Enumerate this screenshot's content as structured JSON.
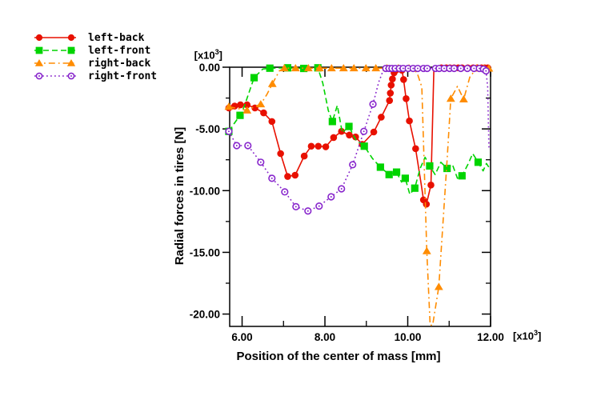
{
  "chart_data": {
    "type": "line",
    "xlabel": "Position of the center of mass [mm]",
    "ylabel": "Radial forces in tires [N]",
    "x_unit": {
      "prefix": "[x10",
      "sup": "3",
      "suffix": "]"
    },
    "y_unit": {
      "prefix": "[x10",
      "sup": "3",
      "suffix": "]"
    },
    "xlim": [
      5.7,
      12.0
    ],
    "ylim": [
      -21,
      0
    ],
    "x_major_ticks": [
      {
        "value": 6,
        "label": "6.00"
      },
      {
        "value": 8,
        "label": "8.00"
      },
      {
        "value": 10,
        "label": "10.00"
      },
      {
        "value": 12,
        "label": "12.00"
      }
    ],
    "x_minor_ticks": [
      7,
      9,
      11
    ],
    "y_major_ticks": [
      {
        "value": 0,
        "label": "0.00"
      },
      {
        "value": -5,
        "label": "-5.00"
      },
      {
        "value": -10,
        "label": "-10.00"
      },
      {
        "value": -15,
        "label": "-15.00"
      },
      {
        "value": -20,
        "label": "-20.00"
      }
    ],
    "y_minor_ticks": [
      -2.5,
      -7.5,
      -12.5,
      -17.5
    ],
    "grid": false,
    "legend_position": "top-left-outside",
    "series": [
      {
        "name": "left-back",
        "color": "#e81000",
        "marker": "circle",
        "line_style": "solid",
        "line": [
          [
            5.68,
            -3.3
          ],
          [
            5.82,
            -3.15
          ],
          [
            5.96,
            -3.05
          ],
          [
            6.12,
            -3.05
          ],
          [
            6.31,
            -3.3
          ],
          [
            6.52,
            -3.7
          ],
          [
            6.72,
            -4.4
          ],
          [
            6.93,
            -7.0
          ],
          [
            7.1,
            -8.85
          ],
          [
            7.28,
            -8.75
          ],
          [
            7.5,
            -7.2
          ],
          [
            7.67,
            -6.4
          ],
          [
            7.84,
            -6.4
          ],
          [
            8.02,
            -6.45
          ],
          [
            8.21,
            -5.7
          ],
          [
            8.4,
            -5.2
          ],
          [
            8.59,
            -5.5
          ],
          [
            8.74,
            -5.65
          ],
          [
            8.9,
            -6.25
          ],
          [
            9.18,
            -5.25
          ],
          [
            9.36,
            -4.05
          ],
          [
            9.56,
            -2.7
          ],
          [
            9.58,
            -2.1
          ],
          [
            9.6,
            -1.45
          ],
          [
            9.63,
            -0.95
          ],
          [
            9.67,
            -0.45
          ],
          [
            9.73,
            -0.2
          ],
          [
            9.8,
            -0.1
          ],
          [
            9.86,
            -0.25
          ],
          [
            9.9,
            -1.0
          ],
          [
            9.96,
            -2.55
          ],
          [
            10.04,
            -4.35
          ],
          [
            10.19,
            -6.6
          ],
          [
            10.33,
            -9.6
          ],
          [
            10.38,
            -10.75
          ],
          [
            10.42,
            -11.3
          ],
          [
            10.45,
            -11.1
          ],
          [
            10.56,
            -9.55
          ],
          [
            10.63,
            -0.3
          ],
          [
            10.81,
            -0.05
          ],
          [
            10.93,
            -0.05
          ],
          [
            11.02,
            -0.05
          ],
          [
            11.12,
            -0.05
          ],
          [
            11.22,
            -0.05
          ],
          [
            11.31,
            -0.05
          ],
          [
            11.45,
            -0.05
          ],
          [
            11.58,
            -0.05
          ],
          [
            11.68,
            -0.05
          ],
          [
            11.78,
            -0.05
          ],
          [
            11.86,
            -0.05
          ],
          [
            11.93,
            -0.05
          ]
        ],
        "markers": [
          [
            5.68,
            -3.3
          ],
          [
            5.82,
            -3.15
          ],
          [
            5.96,
            -3.05
          ],
          [
            6.12,
            -3.05
          ],
          [
            6.31,
            -3.3
          ],
          [
            6.52,
            -3.7
          ],
          [
            6.72,
            -4.4
          ],
          [
            6.93,
            -7.0
          ],
          [
            7.1,
            -8.85
          ],
          [
            7.28,
            -8.75
          ],
          [
            7.5,
            -7.2
          ],
          [
            7.67,
            -6.4
          ],
          [
            7.84,
            -6.4
          ],
          [
            8.02,
            -6.45
          ],
          [
            8.21,
            -5.7
          ],
          [
            8.4,
            -5.2
          ],
          [
            8.59,
            -5.5
          ],
          [
            8.74,
            -5.65
          ],
          [
            8.9,
            -6.25
          ],
          [
            9.18,
            -5.25
          ],
          [
            9.36,
            -4.05
          ],
          [
            9.56,
            -2.7
          ],
          [
            9.58,
            -2.1
          ],
          [
            9.6,
            -1.45
          ],
          [
            9.63,
            -0.95
          ],
          [
            9.67,
            -0.45
          ],
          [
            9.73,
            -0.2
          ],
          [
            9.8,
            -0.1
          ],
          [
            9.86,
            -0.25
          ],
          [
            9.9,
            -1.0
          ],
          [
            9.96,
            -2.55
          ],
          [
            10.04,
            -4.35
          ],
          [
            10.19,
            -6.6
          ],
          [
            10.38,
            -10.75
          ],
          [
            10.45,
            -11.1
          ],
          [
            10.56,
            -9.55
          ],
          [
            10.81,
            -0.05
          ],
          [
            10.93,
            -0.05
          ],
          [
            11.02,
            -0.05
          ],
          [
            11.12,
            -0.05
          ],
          [
            11.22,
            -0.05
          ],
          [
            11.31,
            -0.05
          ],
          [
            11.45,
            -0.05
          ],
          [
            11.58,
            -0.05
          ],
          [
            11.68,
            -0.05
          ],
          [
            11.78,
            -0.05
          ],
          [
            11.86,
            -0.05
          ],
          [
            11.93,
            -0.05
          ]
        ]
      },
      {
        "name": "left-front",
        "color": "#00d400",
        "marker": "square",
        "line_style": "dashed",
        "line": [
          [
            5.68,
            -5.2
          ],
          [
            5.8,
            -4.6
          ],
          [
            5.95,
            -3.9
          ],
          [
            6.05,
            -3.2
          ],
          [
            6.29,
            -0.85
          ],
          [
            6.5,
            -0.15
          ],
          [
            6.67,
            -0.08
          ],
          [
            7.1,
            -0.05
          ],
          [
            7.49,
            -0.1
          ],
          [
            7.83,
            -0.05
          ],
          [
            7.95,
            -1.3
          ],
          [
            8.08,
            -3.5
          ],
          [
            8.18,
            -4.4
          ],
          [
            8.3,
            -3.1
          ],
          [
            8.42,
            -5.3
          ],
          [
            8.58,
            -4.8
          ],
          [
            8.75,
            -5.9
          ],
          [
            8.95,
            -6.4
          ],
          [
            9.15,
            -7.4
          ],
          [
            9.34,
            -8.1
          ],
          [
            9.55,
            -8.7
          ],
          [
            9.73,
            -8.5
          ],
          [
            9.85,
            -9.3
          ],
          [
            9.94,
            -9.0
          ],
          [
            10.05,
            -10.3
          ],
          [
            10.17,
            -9.8
          ],
          [
            10.3,
            -8.2
          ],
          [
            10.42,
            -7.3
          ],
          [
            10.53,
            -8.0
          ],
          [
            10.66,
            -8.7
          ],
          [
            10.8,
            -7.7
          ],
          [
            10.95,
            -8.2
          ],
          [
            11.08,
            -7.9
          ],
          [
            11.2,
            -9.0
          ],
          [
            11.31,
            -8.8
          ],
          [
            11.45,
            -7.9
          ],
          [
            11.57,
            -7.0
          ],
          [
            11.7,
            -7.7
          ],
          [
            11.82,
            -8.4
          ],
          [
            11.9,
            -7.8
          ],
          [
            11.96,
            -8.1
          ]
        ],
        "markers": [
          [
            5.68,
            -5.2
          ],
          [
            5.95,
            -3.9
          ],
          [
            6.29,
            -0.85
          ],
          [
            6.67,
            -0.08
          ],
          [
            7.1,
            -0.05
          ],
          [
            7.49,
            -0.1
          ],
          [
            7.83,
            -0.05
          ],
          [
            8.18,
            -4.4
          ],
          [
            8.58,
            -4.8
          ],
          [
            8.95,
            -6.4
          ],
          [
            9.34,
            -8.1
          ],
          [
            9.55,
            -8.7
          ],
          [
            9.73,
            -8.5
          ],
          [
            9.94,
            -9.0
          ],
          [
            10.17,
            -9.8
          ],
          [
            10.53,
            -8.0
          ],
          [
            10.95,
            -8.2
          ],
          [
            11.31,
            -8.8
          ],
          [
            11.7,
            -7.7
          ]
        ]
      },
      {
        "name": "right-back",
        "color": "#ff8c00",
        "marker": "triangle",
        "line_style": "dashdot",
        "line": [
          [
            5.68,
            -3.2
          ],
          [
            5.9,
            -3.35
          ],
          [
            6.12,
            -3.5
          ],
          [
            6.3,
            -3.2
          ],
          [
            6.45,
            -3.0
          ],
          [
            6.6,
            -2.2
          ],
          [
            6.73,
            -1.35
          ],
          [
            6.9,
            -0.3
          ],
          [
            7.02,
            -0.08
          ],
          [
            7.29,
            -0.08
          ],
          [
            7.6,
            -0.08
          ],
          [
            7.87,
            -0.08
          ],
          [
            8.16,
            -0.08
          ],
          [
            8.45,
            -0.08
          ],
          [
            8.7,
            -0.08
          ],
          [
            8.99,
            -0.08
          ],
          [
            9.23,
            -0.08
          ],
          [
            9.5,
            -0.08
          ],
          [
            9.77,
            -0.08
          ],
          [
            10.03,
            -0.08
          ],
          [
            10.22,
            -0.4
          ],
          [
            10.34,
            -1.6
          ],
          [
            10.46,
            -14.9
          ],
          [
            10.54,
            -20.9
          ],
          [
            10.6,
            -20.9
          ],
          [
            10.75,
            -17.8
          ],
          [
            10.95,
            -7.5
          ],
          [
            11.04,
            -2.55
          ],
          [
            11.2,
            -1.55
          ],
          [
            11.35,
            -2.6
          ],
          [
            11.5,
            -0.8
          ],
          [
            11.66,
            -0.1
          ],
          [
            11.84,
            -0.1
          ],
          [
            11.96,
            -0.1
          ]
        ],
        "markers": [
          [
            5.68,
            -3.2
          ],
          [
            6.12,
            -3.5
          ],
          [
            6.45,
            -3.0
          ],
          [
            6.73,
            -1.35
          ],
          [
            7.02,
            -0.08
          ],
          [
            7.29,
            -0.08
          ],
          [
            7.6,
            -0.08
          ],
          [
            7.87,
            -0.08
          ],
          [
            8.16,
            -0.08
          ],
          [
            8.45,
            -0.08
          ],
          [
            8.7,
            -0.08
          ],
          [
            8.99,
            -0.08
          ],
          [
            9.23,
            -0.08
          ],
          [
            9.5,
            -0.08
          ],
          [
            9.77,
            -0.08
          ],
          [
            10.03,
            -0.08
          ],
          [
            10.46,
            -14.9
          ],
          [
            10.75,
            -17.8
          ],
          [
            11.04,
            -2.55
          ],
          [
            11.35,
            -2.6
          ],
          [
            11.66,
            -0.1
          ],
          [
            11.84,
            -0.1
          ],
          [
            11.96,
            -0.1
          ]
        ]
      },
      {
        "name": "right-front",
        "color": "#8826cc",
        "marker": "circle-open",
        "line_style": "dotted",
        "line": [
          [
            5.68,
            -5.2
          ],
          [
            5.87,
            -6.35
          ],
          [
            6.14,
            -6.35
          ],
          [
            6.45,
            -7.7
          ],
          [
            6.72,
            -9.0
          ],
          [
            7.03,
            -10.1
          ],
          [
            7.3,
            -11.3
          ],
          [
            7.59,
            -11.65
          ],
          [
            7.86,
            -11.25
          ],
          [
            8.15,
            -10.5
          ],
          [
            8.4,
            -9.85
          ],
          [
            8.67,
            -7.9
          ],
          [
            8.94,
            -5.2
          ],
          [
            9.16,
            -3.0
          ],
          [
            9.3,
            -1.2
          ],
          [
            9.42,
            -0.15
          ],
          [
            9.47,
            -0.1
          ],
          [
            9.55,
            -0.1
          ],
          [
            9.62,
            -0.1
          ],
          [
            9.7,
            -0.1
          ],
          [
            9.8,
            -0.1
          ],
          [
            9.89,
            -0.1
          ],
          [
            10.01,
            -0.1
          ],
          [
            10.13,
            -0.1
          ],
          [
            10.24,
            -0.1
          ],
          [
            10.38,
            -0.1
          ],
          [
            10.47,
            -0.1
          ],
          [
            10.67,
            -0.1
          ],
          [
            10.76,
            -0.1
          ],
          [
            10.88,
            -0.1
          ],
          [
            11.01,
            -0.1
          ],
          [
            11.12,
            -0.1
          ],
          [
            11.28,
            -0.1
          ],
          [
            11.44,
            -0.1
          ],
          [
            11.6,
            -0.1
          ],
          [
            11.73,
            -0.1
          ],
          [
            11.83,
            -0.15
          ],
          [
            11.89,
            -0.3
          ],
          [
            11.93,
            -1.6
          ],
          [
            11.96,
            -6.5
          ]
        ],
        "markers": [
          [
            5.68,
            -5.2
          ],
          [
            5.87,
            -6.35
          ],
          [
            6.14,
            -6.35
          ],
          [
            6.45,
            -7.7
          ],
          [
            6.72,
            -9.0
          ],
          [
            7.03,
            -10.1
          ],
          [
            7.3,
            -11.3
          ],
          [
            7.59,
            -11.65
          ],
          [
            7.86,
            -11.25
          ],
          [
            8.15,
            -10.5
          ],
          [
            8.4,
            -9.85
          ],
          [
            8.67,
            -7.9
          ],
          [
            8.94,
            -5.2
          ],
          [
            9.16,
            -3.0
          ],
          [
            9.47,
            -0.1
          ],
          [
            9.55,
            -0.1
          ],
          [
            9.62,
            -0.1
          ],
          [
            9.7,
            -0.1
          ],
          [
            9.8,
            -0.1
          ],
          [
            9.89,
            -0.1
          ],
          [
            10.01,
            -0.1
          ],
          [
            10.13,
            -0.1
          ],
          [
            10.24,
            -0.1
          ],
          [
            10.38,
            -0.1
          ],
          [
            10.47,
            -0.1
          ],
          [
            10.67,
            -0.1
          ],
          [
            10.76,
            -0.1
          ],
          [
            10.88,
            -0.1
          ],
          [
            11.01,
            -0.1
          ],
          [
            11.12,
            -0.1
          ],
          [
            11.28,
            -0.1
          ],
          [
            11.44,
            -0.1
          ],
          [
            11.6,
            -0.1
          ],
          [
            11.73,
            -0.1
          ],
          [
            11.83,
            -0.15
          ],
          [
            11.89,
            -0.3
          ]
        ]
      }
    ]
  }
}
